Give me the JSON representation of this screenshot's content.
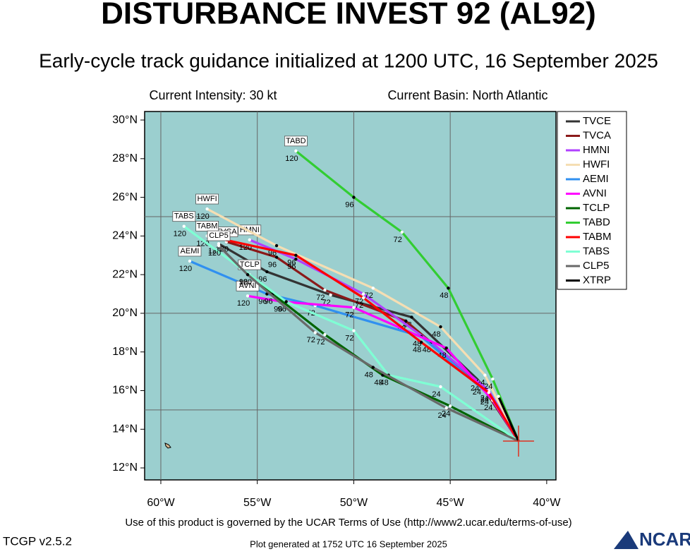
{
  "chart_data": {
    "type": "line",
    "title": "DISTURBANCE INVEST 92 (AL92)",
    "subtitle": "Early-cycle track guidance initialized at 1200 UTC, 16 September 2025",
    "intensity": "Current Intensity: 30 kt",
    "basin": "Current Basin: North Atlantic",
    "terms": "Use of this product is governed by the UCAR Terms of Use (http://www2.ucar.edu/terms-of-use)",
    "version": "TCGP v2.5.2",
    "generated": "Plot generated at 1752 UTC   16 September 2025",
    "logo": "NCAR",
    "xlim": [
      -60.84,
      -39.52
    ],
    "ylim": [
      11.38,
      30.44
    ],
    "xticks": [
      {
        "value": -60,
        "label": "60°W"
      },
      {
        "value": -55,
        "label": "55°W"
      },
      {
        "value": -50,
        "label": "50°W"
      },
      {
        "value": -45,
        "label": "45°W"
      },
      {
        "value": -40,
        "label": "40°W"
      }
    ],
    "yticks": [
      {
        "value": 12,
        "label": "12°N"
      },
      {
        "value": 14,
        "label": "14°N"
      },
      {
        "value": 16,
        "label": "16°N"
      },
      {
        "value": 18,
        "label": "18°N"
      },
      {
        "value": 20,
        "label": "20°N"
      },
      {
        "value": 22,
        "label": "22°N"
      },
      {
        "value": 24,
        "label": "24°N"
      },
      {
        "value": 26,
        "label": "26°N"
      },
      {
        "value": 28,
        "label": "28°N"
      },
      {
        "value": 30,
        "label": "30°N"
      }
    ],
    "grid_lat": [
      15,
      20,
      25
    ],
    "grid_lon": [
      -60,
      -55,
      -50,
      -45
    ],
    "current_position": [
      -41.46,
      13.39
    ],
    "hours": [
      24,
      48,
      72,
      96,
      120
    ],
    "series": [
      {
        "name": "TVCE",
        "color": "#333333",
        "x": [
          -41.46,
          -43.5,
          -47.0,
          -51.2,
          -54.5,
          -57.0
        ],
        "values": [
          13.39,
          16.5,
          19.8,
          20.95,
          22.15,
          23.6
        ]
      },
      {
        "name": "TVCA",
        "color": "#8b1a1a",
        "x": [
          -41.46,
          -43.4,
          -47.3,
          -51.5,
          -54.0,
          -56.6
        ],
        "values": [
          13.39,
          16.3,
          19.6,
          21.2,
          22.9,
          23.7
        ]
      },
      {
        "name": "HMNI",
        "color": "#b040ff",
        "x": [
          -41.46,
          -43.0,
          -46.0,
          -49.5,
          -53.0,
          -55.4
        ],
        "values": [
          13.39,
          16.0,
          18.5,
          21.0,
          22.8,
          23.8
        ]
      },
      {
        "name": "HWFI",
        "color": "#f5deb3",
        "x": [
          -41.46,
          -43.2,
          -45.5,
          -49.0,
          -54.0,
          -57.6
        ],
        "values": [
          13.39,
          16.8,
          19.3,
          21.3,
          23.5,
          25.4
        ]
      },
      {
        "name": "AEMI",
        "color": "#3090f0",
        "x": [
          -41.46,
          -43.0,
          -46.5,
          -52.0,
          -54.5,
          -58.5
        ],
        "values": [
          13.39,
          15.8,
          18.8,
          20.4,
          21.0,
          22.7
        ]
      },
      {
        "name": "AVNI",
        "color": "#ff00ff",
        "x": [
          -41.46,
          -42.8,
          -45.2,
          -50.0,
          -53.7,
          -55.5
        ],
        "values": [
          13.39,
          15.5,
          18.2,
          20.3,
          20.6,
          20.9
        ]
      },
      {
        "name": "TCLP",
        "color": "#006400",
        "x": [
          -41.46,
          -45.0,
          -48.5,
          -51.5,
          -54.2,
          -55.4
        ],
        "values": [
          13.39,
          15.2,
          16.8,
          18.9,
          21.0,
          22.0
        ]
      },
      {
        "name": "TABD",
        "color": "#32cd32",
        "x": [
          -41.46,
          -42.8,
          -45.1,
          -47.5,
          -50.0,
          -53.0
        ],
        "values": [
          13.39,
          16.6,
          21.3,
          24.2,
          26.0,
          28.4
        ]
      },
      {
        "name": "TABM",
        "color": "#ff0000",
        "x": [
          -41.46,
          -43.0,
          -46.5,
          -49.5,
          -53.0,
          -57.6
        ],
        "values": [
          13.39,
          15.9,
          18.5,
          20.8,
          23.0,
          24.0
        ]
      },
      {
        "name": "TABS",
        "color": "#7fffd4",
        "x": [
          -41.46,
          -45.5,
          -48.2,
          -50.0,
          -53.5,
          -58.8
        ],
        "values": [
          13.39,
          16.2,
          16.8,
          19.1,
          20.6,
          24.5
        ]
      },
      {
        "name": "CLP5",
        "color": "#696969",
        "x": [
          -41.46,
          -45.2,
          -49.0,
          -52.0,
          -55.5,
          -57.0
        ],
        "values": [
          13.39,
          15.1,
          17.2,
          19.0,
          22.0,
          23.5
        ]
      },
      {
        "name": "XTRP",
        "color": "#000000",
        "x": [
          -41.46,
          -42.5
        ],
        "values": [
          13.39,
          15.7
        ]
      }
    ]
  }
}
